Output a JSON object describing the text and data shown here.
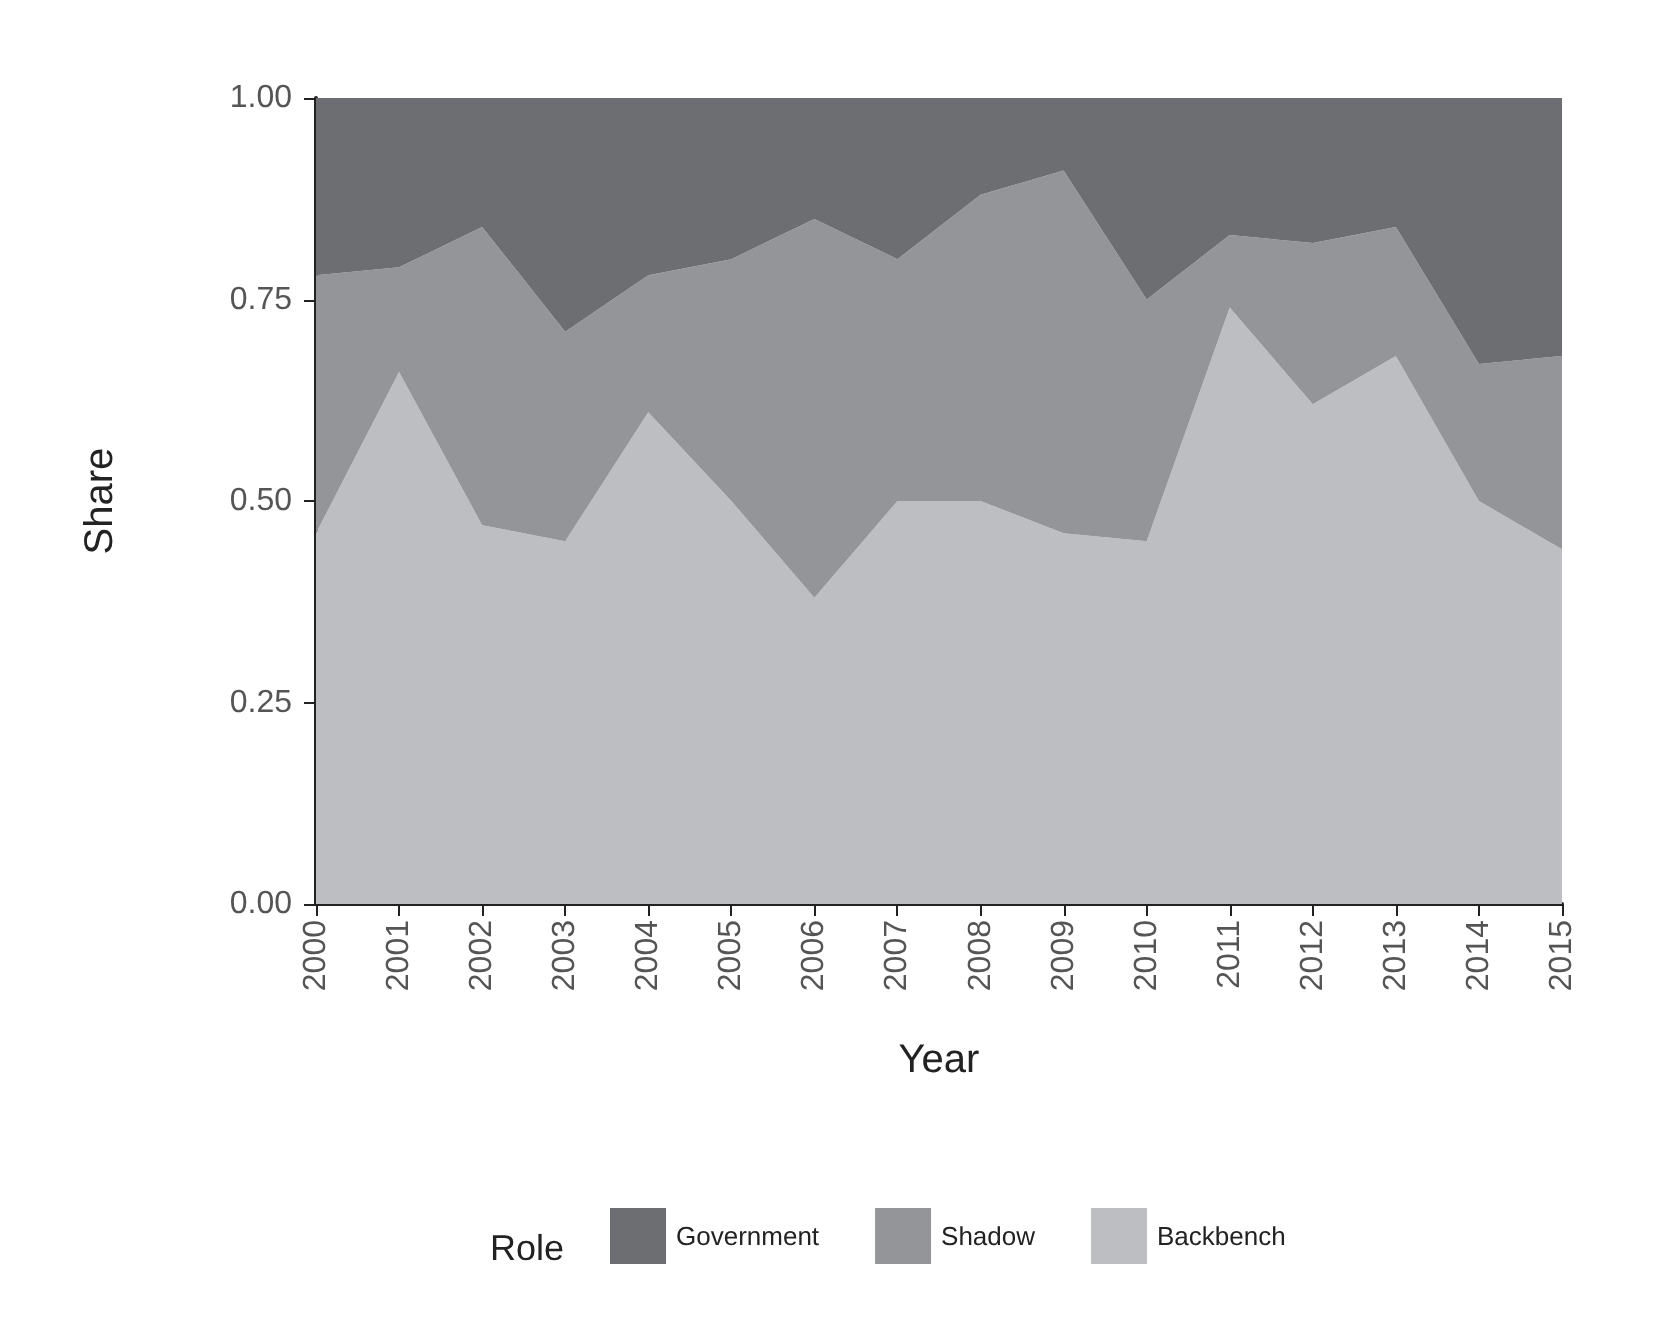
{
  "chart_data": {
    "type": "area",
    "stacked": true,
    "xlabel": "Year",
    "ylabel": "Share",
    "legend_title": "Role",
    "legend": "bottom",
    "grid": false,
    "categories": [
      "2000",
      "2001",
      "2002",
      "2003",
      "2004",
      "2005",
      "2006",
      "2007",
      "2008",
      "2009",
      "2010",
      "2011",
      "2012",
      "2013",
      "2014",
      "2015"
    ],
    "ylim": [
      0,
      1
    ],
    "yticks": [
      {
        "value": 0,
        "label": "0.00"
      },
      {
        "value": 0.25,
        "label": "0.25"
      },
      {
        "value": 0.5,
        "label": "0.50"
      },
      {
        "value": 0.75,
        "label": "0.75"
      },
      {
        "value": 1,
        "label": "1.00"
      }
    ],
    "series": [
      {
        "name": "Backbench",
        "color": "#bdbec2",
        "values": [
          0.46,
          0.66,
          0.47,
          0.45,
          0.61,
          0.5,
          0.38,
          0.5,
          0.5,
          0.46,
          0.45,
          0.74,
          0.62,
          0.68,
          0.5,
          0.44
        ]
      },
      {
        "name": "Shadow",
        "color": "#949599",
        "values": [
          0.32,
          0.13,
          0.37,
          0.26,
          0.17,
          0.3,
          0.47,
          0.3,
          0.38,
          0.45,
          0.3,
          0.09,
          0.2,
          0.16,
          0.17,
          0.24
        ]
      },
      {
        "name": "Government",
        "color": "#6d6e72",
        "values": [
          0.22,
          0.21,
          0.16,
          0.29,
          0.22,
          0.2,
          0.15,
          0.2,
          0.12,
          0.09,
          0.25,
          0.17,
          0.18,
          0.16,
          0.33,
          0.32
        ]
      }
    ]
  }
}
